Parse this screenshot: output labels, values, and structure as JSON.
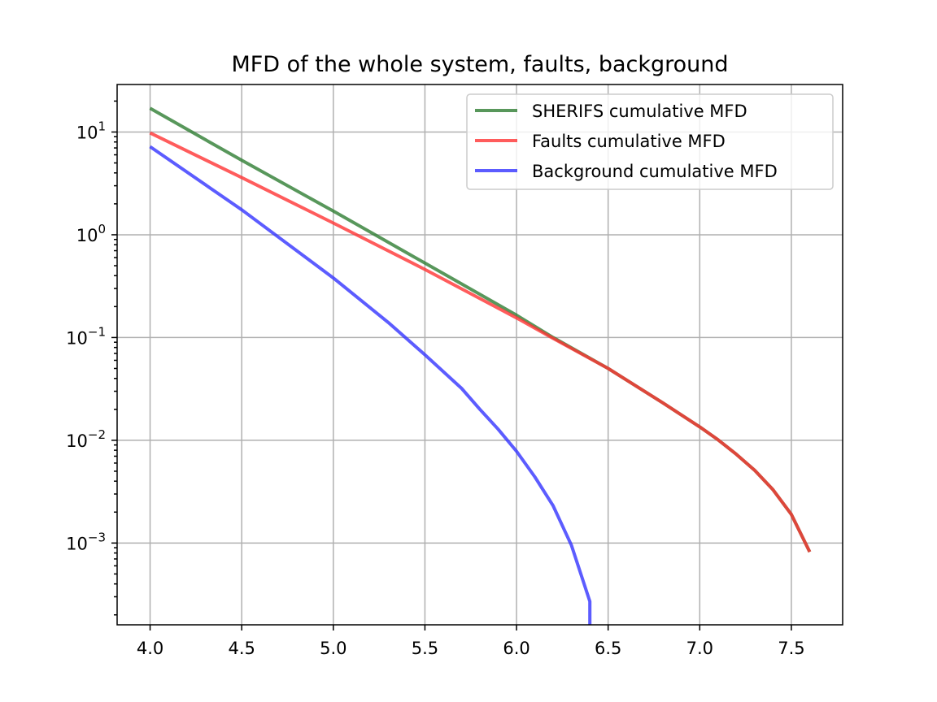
{
  "chart_data": {
    "type": "line",
    "title": "MFD of the whole system, faults, background",
    "xlabel": "",
    "ylabel": "",
    "xlim": [
      3.82,
      7.78
    ],
    "ylim": [
      0.00016,
      29
    ],
    "y_scale": "log",
    "grid": true,
    "legend_position": "top-right",
    "x_ticks": [
      {
        "value": 4.0,
        "label": "4.0"
      },
      {
        "value": 4.5,
        "label": "4.5"
      },
      {
        "value": 5.0,
        "label": "5.0"
      },
      {
        "value": 5.5,
        "label": "5.5"
      },
      {
        "value": 6.0,
        "label": "6.0"
      },
      {
        "value": 6.5,
        "label": "6.5"
      },
      {
        "value": 7.0,
        "label": "7.0"
      },
      {
        "value": 7.5,
        "label": "7.5"
      }
    ],
    "y_ticks": [
      {
        "value": 10,
        "base": "10",
        "exp": "1"
      },
      {
        "value": 1,
        "base": "10",
        "exp": "0"
      },
      {
        "value": 0.1,
        "base": "10",
        "exp": "−1"
      },
      {
        "value": 0.01,
        "base": "10",
        "exp": "−2"
      },
      {
        "value": 0.001,
        "base": "10",
        "exp": "−3"
      }
    ],
    "series": [
      {
        "name": "SHERIFS cumulative MFD",
        "color": "#2e7d32",
        "x": [
          4.0,
          4.5,
          5.0,
          5.5,
          6.0,
          6.2,
          6.5,
          6.8,
          7.0,
          7.1,
          7.2,
          7.3,
          7.4,
          7.5,
          7.6
        ],
        "y": [
          17.0,
          5.3,
          1.7,
          0.53,
          0.165,
          0.1,
          0.05,
          0.023,
          0.0135,
          0.0101,
          0.0073,
          0.0051,
          0.0033,
          0.0019,
          0.00082
        ]
      },
      {
        "name": "Faults cumulative MFD",
        "color": "#ff3333",
        "x": [
          4.0,
          4.5,
          5.0,
          5.5,
          6.0,
          6.2,
          6.5,
          6.8,
          7.0,
          7.1,
          7.2,
          7.3,
          7.4,
          7.5,
          7.6
        ],
        "y": [
          9.8,
          3.6,
          1.3,
          0.46,
          0.155,
          0.098,
          0.05,
          0.023,
          0.0135,
          0.0101,
          0.0073,
          0.0051,
          0.0033,
          0.0019,
          0.00082
        ]
      },
      {
        "name": "Background cumulative MFD",
        "color": "#3333ff",
        "x": [
          4.0,
          4.5,
          5.0,
          5.3,
          5.5,
          5.7,
          5.8,
          5.9,
          6.0,
          6.1,
          6.2,
          6.3,
          6.4,
          6.4
        ],
        "y": [
          7.2,
          1.75,
          0.38,
          0.14,
          0.068,
          0.032,
          0.02,
          0.0128,
          0.0078,
          0.0044,
          0.0023,
          0.00095,
          0.00027,
          0.00016
        ]
      }
    ]
  }
}
